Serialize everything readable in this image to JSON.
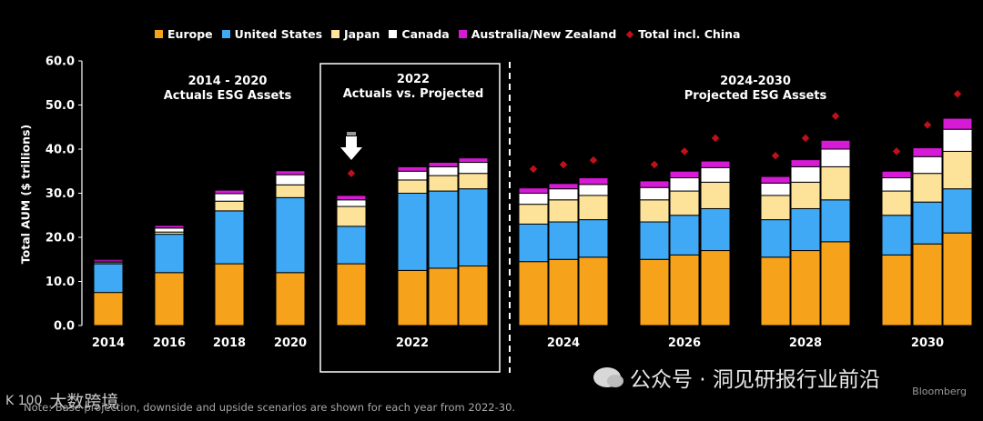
{
  "legend": {
    "items": [
      {
        "label": "Europe",
        "color": "#f7a21b"
      },
      {
        "label": "United States",
        "color": "#3fa9f5"
      },
      {
        "label": "Japan",
        "color": "#fde29a"
      },
      {
        "label": "Canada",
        "color": "#ffffff"
      },
      {
        "label": "Australia/New Zealand",
        "color": "#d61ad6"
      },
      {
        "label": "Total incl. China",
        "color": "#c0101a"
      }
    ]
  },
  "sections": {
    "left": {
      "line1": "2014 - 2020",
      "line2": "Actuals ESG Assets"
    },
    "middle": {
      "line1": "2022",
      "line2": "Actuals vs. Projected"
    },
    "right": {
      "line1": "2024-2030",
      "line2": "Projected ESG Assets"
    }
  },
  "note": "Note: Base projection, downside and upside scenarios are shown for each year from 2022-30.",
  "source": "Bloomberg",
  "watermark_right": "公众号 · 洞见研报行业前沿",
  "watermark_left": "大数跨境",
  "watermark_left_mark": "K 100",
  "chart_data": {
    "type": "bar",
    "stacked": true,
    "ylabel": "Total AUM ($ trillions)",
    "ylim": [
      0,
      60
    ],
    "yticks": [
      "0.0",
      "10.0",
      "20.0",
      "30.0",
      "40.0",
      "50.0",
      "60.0"
    ],
    "xlabels": [
      "2014",
      "2016",
      "2018",
      "2020",
      "2022",
      "2024",
      "2026",
      "2028",
      "2030"
    ],
    "series_names": [
      "Europe",
      "United States",
      "Japan",
      "Canada",
      "Australia/New Zealand"
    ],
    "groups": [
      {
        "label": "2014",
        "bars": [
          {
            "values": [
              7.5,
              6.5,
              0.3,
              0.3,
              0.4
            ],
            "total_china": null
          }
        ]
      },
      {
        "label": "2016",
        "bars": [
          {
            "values": [
              12.0,
              8.7,
              0.5,
              0.9,
              0.6
            ],
            "total_china": null
          }
        ]
      },
      {
        "label": "2018",
        "bars": [
          {
            "values": [
              14.0,
              12.0,
              2.2,
              1.7,
              0.8
            ],
            "total_china": null
          }
        ]
      },
      {
        "label": "2020",
        "bars": [
          {
            "values": [
              12.0,
              17.0,
              2.9,
              2.3,
              0.9
            ],
            "total_china": null
          }
        ]
      },
      {
        "label": "2022",
        "bars": [
          {
            "values": [
              14.0,
              8.5,
              4.5,
              1.5,
              1.0
            ],
            "total_china": 34.5
          },
          {
            "values": [
              12.5,
              17.5,
              3.0,
              2.0,
              1.0
            ],
            "total_china": null
          },
          {
            "values": [
              13.0,
              17.5,
              3.5,
              2.0,
              1.0
            ],
            "total_china": null
          },
          {
            "values": [
              13.5,
              17.5,
              3.5,
              2.5,
              1.0
            ],
            "total_china": null
          }
        ]
      },
      {
        "label": "2024",
        "bars": [
          {
            "values": [
              14.5,
              8.5,
              4.5,
              2.5,
              1.2
            ],
            "total_china": 35.5
          },
          {
            "values": [
              15.0,
              8.5,
              5.0,
              2.5,
              1.2
            ],
            "total_china": 36.5
          },
          {
            "values": [
              15.5,
              8.5,
              5.5,
              2.5,
              1.5
            ],
            "total_china": 37.5
          }
        ]
      },
      {
        "label": "2026",
        "bars": [
          {
            "values": [
              15.0,
              8.5,
              5.0,
              2.8,
              1.5
            ],
            "total_china": 36.5
          },
          {
            "values": [
              16.0,
              9.0,
              5.5,
              3.0,
              1.5
            ],
            "total_china": 39.5
          },
          {
            "values": [
              17.0,
              9.5,
              6.0,
              3.3,
              1.5
            ],
            "total_china": 42.5
          }
        ]
      },
      {
        "label": "2028",
        "bars": [
          {
            "values": [
              15.5,
              8.5,
              5.5,
              2.8,
              1.5
            ],
            "total_china": 38.5
          },
          {
            "values": [
              17.0,
              9.5,
              6.0,
              3.5,
              1.6
            ],
            "total_china": 42.5
          },
          {
            "values": [
              19.0,
              9.5,
              7.5,
              4.0,
              2.0
            ],
            "total_china": 47.5
          }
        ]
      },
      {
        "label": "2030",
        "bars": [
          {
            "values": [
              16.0,
              9.0,
              5.5,
              3.0,
              1.5
            ],
            "total_china": 39.5
          },
          {
            "values": [
              18.5,
              9.5,
              6.5,
              3.8,
              2.0
            ],
            "total_china": 45.5
          },
          {
            "values": [
              21.0,
              10.0,
              8.5,
              5.0,
              2.5
            ],
            "total_china": 52.5
          }
        ]
      }
    ],
    "annotations": [
      {
        "text": "2014 - 2020 Actuals ESG Assets"
      },
      {
        "text": "2022 Actuals vs. Projected"
      },
      {
        "text": "2024-2030 Projected ESG Assets"
      }
    ]
  }
}
